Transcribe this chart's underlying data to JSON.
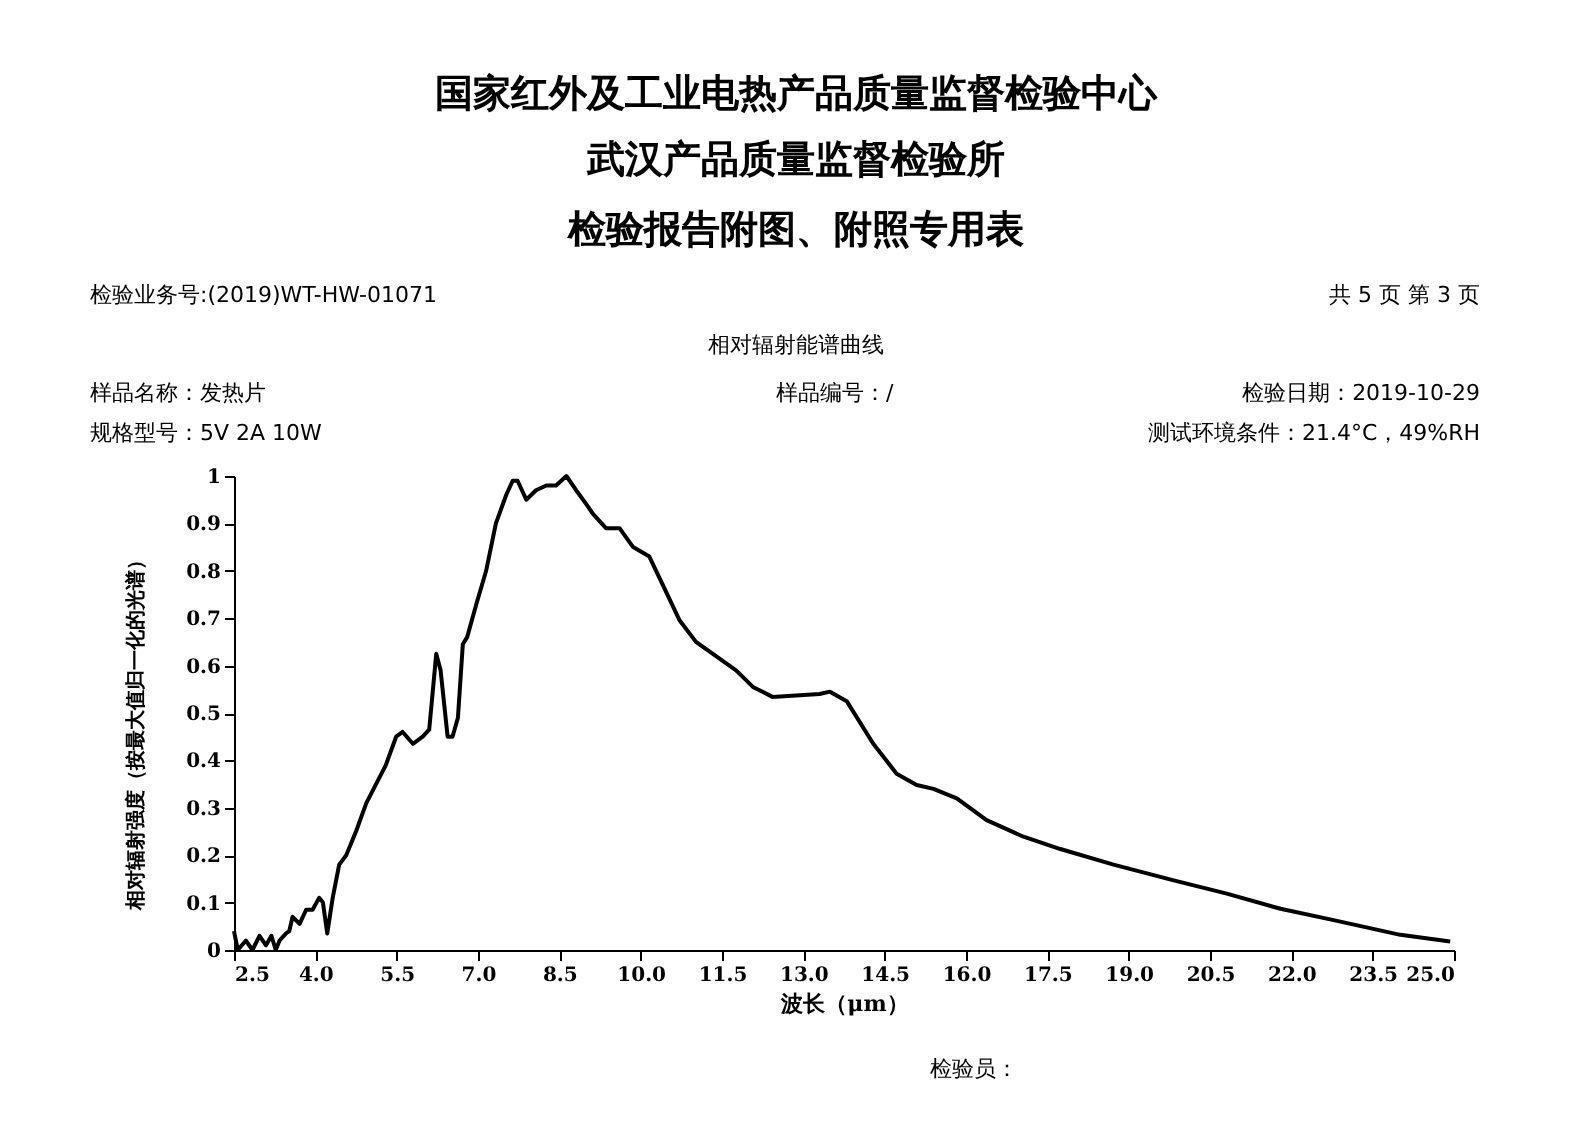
{
  "chart_data": {
    "type": "line",
    "title": "相对辐射能谱曲线",
    "xlabel": "波长（μm）",
    "ylabel": "相对辐射强度（按最大值归一化的光谱）",
    "annotations": [
      "国家红外及工业电热产品质量监督检验中心",
      "武汉产品质量监督检验所",
      "检验报告附图、附照专用表",
      "检验业务号:(2019)WT-HW-01071",
      "共 5 页 第 3 页",
      "样品名称：发热片",
      "样品编号：/",
      "检验日期：2019-10-29",
      "规格型号：5V  2A  10W",
      "测试环境条件：21.4°C，49%RH",
      "检验员："
    ],
    "x": [
      2.5,
      2.57,
      2.72,
      2.84,
      2.97,
      3.09,
      3.19,
      3.27,
      3.34,
      3.46,
      3.52,
      3.58,
      3.71,
      3.83,
      3.95,
      4.07,
      4.14,
      4.22,
      4.32,
      4.44,
      4.57,
      4.75,
      4.94,
      5.12,
      5.3,
      5.49,
      5.61,
      5.8,
      5.98,
      6.1,
      6.23,
      6.31,
      6.44,
      6.53,
      6.63,
      6.72,
      6.8,
      6.97,
      7.15,
      7.33,
      7.52,
      7.64,
      7.73,
      7.89,
      8.07,
      8.26,
      8.44,
      8.63,
      8.81,
      9.0,
      9.12,
      9.36,
      9.61,
      9.86,
      10.16,
      10.41,
      10.72,
      11.02,
      11.39,
      11.76,
      12.07,
      12.43,
      13.3,
      13.49,
      13.8,
      14.29,
      14.72,
      15.09,
      15.4,
      15.83,
      16.38,
      17.06,
      17.74,
      18.72,
      19.83,
      20.81,
      21.8,
      22.78,
      24.01,
      24.93
    ],
    "series": [
      {
        "color": "#000000",
        "values": [
          0.04,
          0,
          0.02,
          0,
          0.03,
          0.01,
          0.03,
          0,
          0.02,
          0.035,
          0.04,
          0.07,
          0.055,
          0.085,
          0.085,
          0.11,
          0.1,
          0.035,
          0.11,
          0.18,
          0.2,
          0.25,
          0.31,
          0.35,
          0.39,
          0.45,
          0.46,
          0.435,
          0.45,
          0.465,
          0.625,
          0.59,
          0.45,
          0.45,
          0.49,
          0.645,
          0.66,
          0.73,
          0.8,
          0.9,
          0.96,
          0.99,
          0.99,
          0.95,
          0.97,
          0.98,
          0.98,
          1.0,
          0.97,
          0.94,
          0.92,
          0.89,
          0.89,
          0.85,
          0.83,
          0.77,
          0.695,
          0.65,
          0.62,
          0.59,
          0.555,
          0.534,
          0.54,
          0.545,
          0.525,
          0.435,
          0.372,
          0.348,
          0.34,
          0.32,
          0.274,
          0.239,
          0.213,
          0.18,
          0.147,
          0.119,
          0.087,
          0.063,
          0.032,
          0.018
        ]
      }
    ],
    "xlim": [
      2.5,
      25.0
    ],
    "xticks": [
      {
        "value": 2.5,
        "label": "2.5"
      },
      {
        "value": 4,
        "label": "4.0"
      },
      {
        "value": 5.5,
        "label": "5.5"
      },
      {
        "value": 7,
        "label": "7.0"
      },
      {
        "value": 8.5,
        "label": "8.5"
      },
      {
        "value": 10,
        "label": "10.0"
      },
      {
        "value": 11.5,
        "label": "11.5"
      },
      {
        "value": 13,
        "label": "13.0"
      },
      {
        "value": 14.5,
        "label": "14.5"
      },
      {
        "value": 16,
        "label": "16.0"
      },
      {
        "value": 17.5,
        "label": "17.5"
      },
      {
        "value": 19,
        "label": "19.0"
      },
      {
        "value": 20.5,
        "label": "20.5"
      },
      {
        "value": 22,
        "label": "22.0"
      },
      {
        "value": 23.5,
        "label": "23.5"
      },
      {
        "value": 25,
        "label": "25.0"
      }
    ],
    "ylim": [
      0,
      1
    ],
    "yticks": [
      0,
      0.1,
      0.2,
      0.3,
      0.4,
      0.5,
      0.6,
      0.7,
      0.8,
      0.9,
      1
    ],
    "grid": false,
    "marker": "none",
    "line_style": "solid"
  }
}
